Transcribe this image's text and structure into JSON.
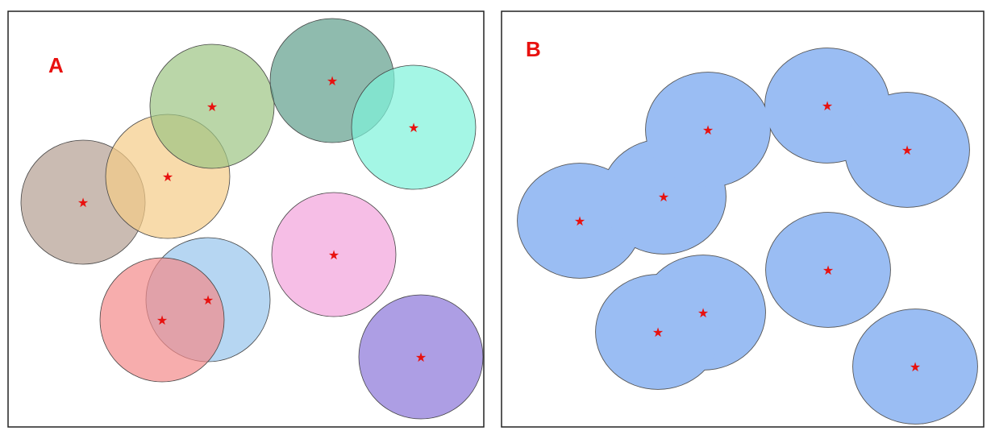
{
  "panels": {
    "a": {
      "label": "A",
      "circles": [
        {
          "name": "brown",
          "fill": "#b39e92"
        },
        {
          "name": "orange",
          "fill": "#f5cc87"
        },
        {
          "name": "green",
          "fill": "#9dc483"
        },
        {
          "name": "teal",
          "fill": "#5f9e8c"
        },
        {
          "name": "aqua",
          "fill": "#7df2da"
        },
        {
          "name": "pink",
          "fill": "#f2a2dc"
        },
        {
          "name": "light-blue",
          "fill": "#97c4ec"
        },
        {
          "name": "red",
          "fill": "#f48a8a"
        },
        {
          "name": "purple",
          "fill": "#8a75d9"
        }
      ]
    },
    "b": {
      "label": "B",
      "circles": [
        {
          "name": "c1"
        },
        {
          "name": "c2"
        },
        {
          "name": "c3"
        },
        {
          "name": "c4"
        },
        {
          "name": "c5"
        },
        {
          "name": "c6"
        },
        {
          "name": "c7"
        },
        {
          "name": "c8"
        },
        {
          "name": "c9"
        }
      ]
    }
  },
  "colors": {
    "label": "#e8110f",
    "star": "#e8110f",
    "union_fill": "#9abdf3",
    "outline": "#555555"
  },
  "marker_icon": "star-icon"
}
